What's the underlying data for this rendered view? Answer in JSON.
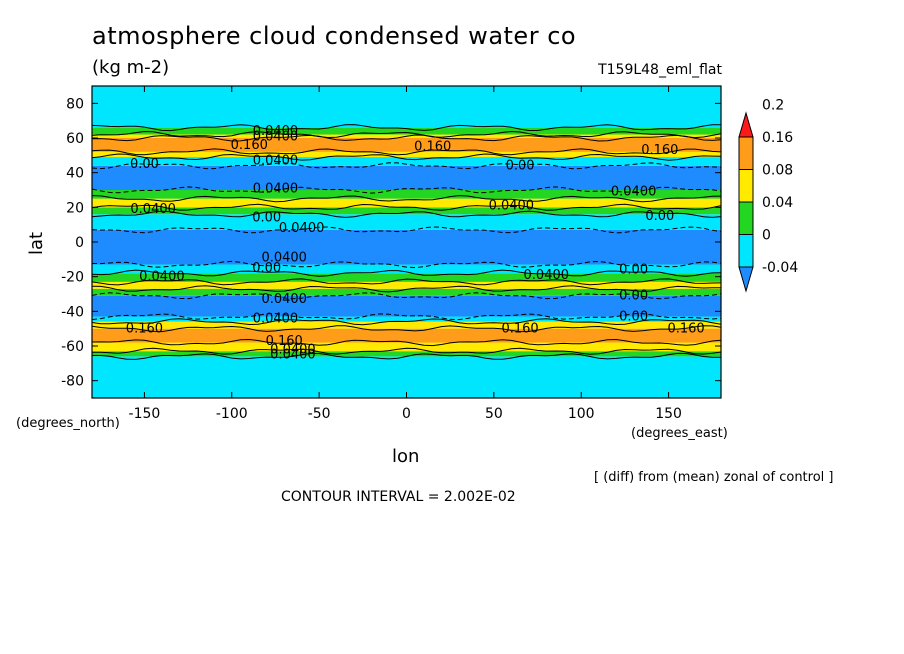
{
  "chart_data": {
    "type": "heatmap",
    "title": "atmosphere cloud condensed water co",
    "units": "(kg m-2)",
    "run_label": "T159L48_eml_flat",
    "xlabel": "lon",
    "ylabel": "lat",
    "x_units_label": "(degrees_east)",
    "y_units_label": "(degrees_north)",
    "note": "[ (diff) from (mean) zonal of control ]",
    "contour_interval": "CONTOUR INTERVAL = 2.002E-02",
    "xlim": [
      -180,
      180
    ],
    "ylim": [
      -90,
      90
    ],
    "x_ticks": [
      -150,
      -100,
      -50,
      0,
      50,
      100,
      150
    ],
    "x_tick_labels": [
      "-150",
      "-100",
      "-50",
      "0",
      "50",
      "100",
      "150"
    ],
    "y_ticks": [
      80,
      60,
      40,
      20,
      0,
      -20,
      -40,
      -60,
      -80
    ],
    "y_tick_labels": [
      "80",
      "60",
      "40",
      "20",
      "0",
      "-20",
      "-40",
      "-60",
      "-80"
    ],
    "colorbar": {
      "levels": [
        -0.04,
        0,
        0.04,
        0.08,
        0.16,
        0.2
      ],
      "labels": [
        "-0.04",
        "0",
        "0.04",
        "0.08",
        "0.16",
        "0.2"
      ],
      "colors": [
        "#1e8cff",
        "#00e6ff",
        "#22d622",
        "#ffea00",
        "#ff9c1a",
        "#ff1a1a"
      ]
    },
    "zonal_bands": [
      {
        "lat_min": -90,
        "lat_max": -66,
        "value": 0.0
      },
      {
        "lat_min": -66,
        "lat_max": -63,
        "value": 0.04
      },
      {
        "lat_min": -63,
        "lat_max": -58,
        "value": 0.08
      },
      {
        "lat_min": -58,
        "lat_max": -50,
        "value": 0.16
      },
      {
        "lat_min": -50,
        "lat_max": -46,
        "value": 0.08
      },
      {
        "lat_min": -46,
        "lat_max": -43,
        "value": 0.0
      },
      {
        "lat_min": -43,
        "lat_max": -31,
        "value": -0.04
      },
      {
        "lat_min": -31,
        "lat_max": -27,
        "value": 0.04
      },
      {
        "lat_min": -27,
        "lat_max": -23,
        "value": 0.08
      },
      {
        "lat_min": -23,
        "lat_max": -18,
        "value": 0.04
      },
      {
        "lat_min": -18,
        "lat_max": -13,
        "value": 0.0
      },
      {
        "lat_min": -13,
        "lat_max": 7,
        "value": -0.04
      },
      {
        "lat_min": 7,
        "lat_max": 16,
        "value": 0.0
      },
      {
        "lat_min": 16,
        "lat_max": 20,
        "value": 0.04
      },
      {
        "lat_min": 20,
        "lat_max": 25,
        "value": 0.08
      },
      {
        "lat_min": 25,
        "lat_max": 30,
        "value": 0.04
      },
      {
        "lat_min": 30,
        "lat_max": 44,
        "value": -0.04
      },
      {
        "lat_min": 44,
        "lat_max": 49,
        "value": 0.0
      },
      {
        "lat_min": 49,
        "lat_max": 52,
        "value": 0.08
      },
      {
        "lat_min": 52,
        "lat_max": 60,
        "value": 0.16
      },
      {
        "lat_min": 60,
        "lat_max": 62,
        "value": 0.08
      },
      {
        "lat_min": 62,
        "lat_max": 66,
        "value": 0.04
      },
      {
        "lat_min": 66,
        "lat_max": 90,
        "value": 0.0
      }
    ],
    "contour_labels": [
      {
        "lon": -75,
        "lat": 64,
        "text": "0.0400"
      },
      {
        "lon": -75,
        "lat": 61,
        "text": "0.0400"
      },
      {
        "lon": -90,
        "lat": 56,
        "text": "0.160"
      },
      {
        "lon": 15,
        "lat": 55,
        "text": "0.160"
      },
      {
        "lon": 145,
        "lat": 53,
        "text": "0.160"
      },
      {
        "lon": -150,
        "lat": 45,
        "text": "0.00"
      },
      {
        "lon": -75,
        "lat": 47,
        "text": "0.0400"
      },
      {
        "lon": 65,
        "lat": 44,
        "text": "0.00"
      },
      {
        "lon": -75,
        "lat": 31,
        "text": "0.0400"
      },
      {
        "lon": 130,
        "lat": 29,
        "text": "0.0400"
      },
      {
        "lon": -145,
        "lat": 19,
        "text": "0.0400"
      },
      {
        "lon": 60,
        "lat": 21,
        "text": "0.0400"
      },
      {
        "lon": -80,
        "lat": 14,
        "text": "0.00"
      },
      {
        "lon": 145,
        "lat": 15,
        "text": "0.00"
      },
      {
        "lon": -60,
        "lat": 8,
        "text": "0.0400"
      },
      {
        "lon": -70,
        "lat": -9,
        "text": "0.0400"
      },
      {
        "lon": -80,
        "lat": -15,
        "text": "0.00"
      },
      {
        "lon": 130,
        "lat": -16,
        "text": "0.00"
      },
      {
        "lon": -140,
        "lat": -20,
        "text": "0.0400"
      },
      {
        "lon": 80,
        "lat": -19,
        "text": "0.0400"
      },
      {
        "lon": -70,
        "lat": -33,
        "text": "0.0400"
      },
      {
        "lon": 130,
        "lat": -31,
        "text": "0.00"
      },
      {
        "lon": -75,
        "lat": -44,
        "text": "0.0400"
      },
      {
        "lon": 130,
        "lat": -43,
        "text": "0.00"
      },
      {
        "lon": -150,
        "lat": -50,
        "text": "0.160"
      },
      {
        "lon": 65,
        "lat": -50,
        "text": "0.160"
      },
      {
        "lon": 160,
        "lat": -50,
        "text": "0.160"
      },
      {
        "lon": -70,
        "lat": -57,
        "text": "0.160"
      },
      {
        "lon": -65,
        "lat": -62,
        "text": "0.0400"
      },
      {
        "lon": -65,
        "lat": -65,
        "text": "0.0400"
      }
    ]
  }
}
